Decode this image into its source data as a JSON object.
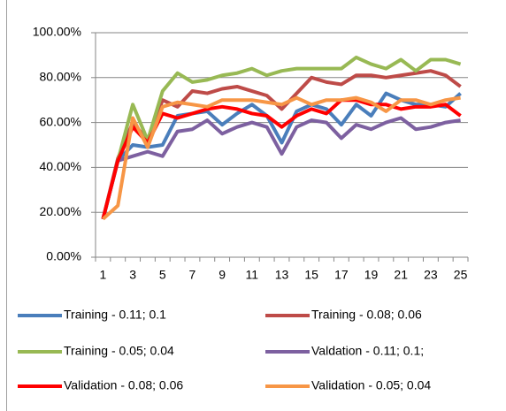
{
  "chart_data": {
    "type": "line",
    "categories": [
      1,
      null,
      3,
      null,
      5,
      null,
      7,
      null,
      9,
      null,
      11,
      null,
      13,
      null,
      15,
      null,
      17,
      null,
      19,
      null,
      21,
      null,
      23,
      null,
      25
    ],
    "series": [
      {
        "name": "Training - 0.11; 0.1",
        "color": "#4a7ebb",
        "values": [
          17,
          43,
          50,
          49,
          50,
          63,
          64,
          65,
          59,
          64,
          68,
          63,
          51,
          65,
          68,
          66,
          59,
          68,
          63,
          73,
          70,
          68,
          68,
          67,
          73
        ]
      },
      {
        "name": "Training - 0.08; 0.06",
        "color": "#be4b48",
        "values": [
          17,
          44,
          60,
          52,
          70,
          67,
          74,
          73,
          75,
          76,
          74,
          72,
          66,
          73,
          80,
          78,
          77,
          81,
          81,
          80,
          81,
          82,
          83,
          81,
          76
        ]
      },
      {
        "name": "Training - 0.05; 0.04",
        "color": "#98b954",
        "values": [
          17,
          43,
          68,
          52,
          74,
          82,
          78,
          79,
          81,
          82,
          84,
          81,
          83,
          84,
          84,
          84,
          84,
          89,
          86,
          84,
          88,
          83,
          88,
          88,
          86
        ]
      },
      {
        "name": "Valdation - 0.11; 0.1;",
        "color": "#7d60a0",
        "values": [
          17,
          43,
          45,
          47,
          45,
          56,
          57,
          61,
          55,
          58,
          60,
          58,
          46,
          58,
          61,
          60,
          53,
          59,
          57,
          60,
          62,
          57,
          58,
          60,
          61
        ]
      },
      {
        "name": "Validation - 0.08; 0.06",
        "color": "#ff0000",
        "values": [
          17,
          43,
          58,
          51,
          64,
          62,
          64,
          66,
          67,
          66,
          64,
          63,
          58,
          63,
          66,
          64,
          70,
          70,
          68,
          68,
          66,
          67,
          67,
          68,
          63
        ]
      },
      {
        "name": "Validation - 0.05; 0.04",
        "color": "#f79646",
        "values": [
          17,
          23,
          62,
          49,
          67,
          69,
          68,
          67,
          70,
          70,
          70,
          69,
          68,
          71,
          68,
          70,
          70,
          71,
          69,
          65,
          70,
          70,
          68,
          70,
          71
        ]
      }
    ],
    "ylim": [
      0,
      100
    ],
    "yticks": [
      {
        "value": 0,
        "label": "0.00%"
      },
      {
        "value": 20,
        "label": "20.00%"
      },
      {
        "value": 40,
        "label": "40.00%"
      },
      {
        "value": 60,
        "label": "60.00%"
      },
      {
        "value": 80,
        "label": "80.00%"
      },
      {
        "value": 100,
        "label": "100.00%"
      }
    ],
    "grid": true,
    "legend": "bottom"
  }
}
